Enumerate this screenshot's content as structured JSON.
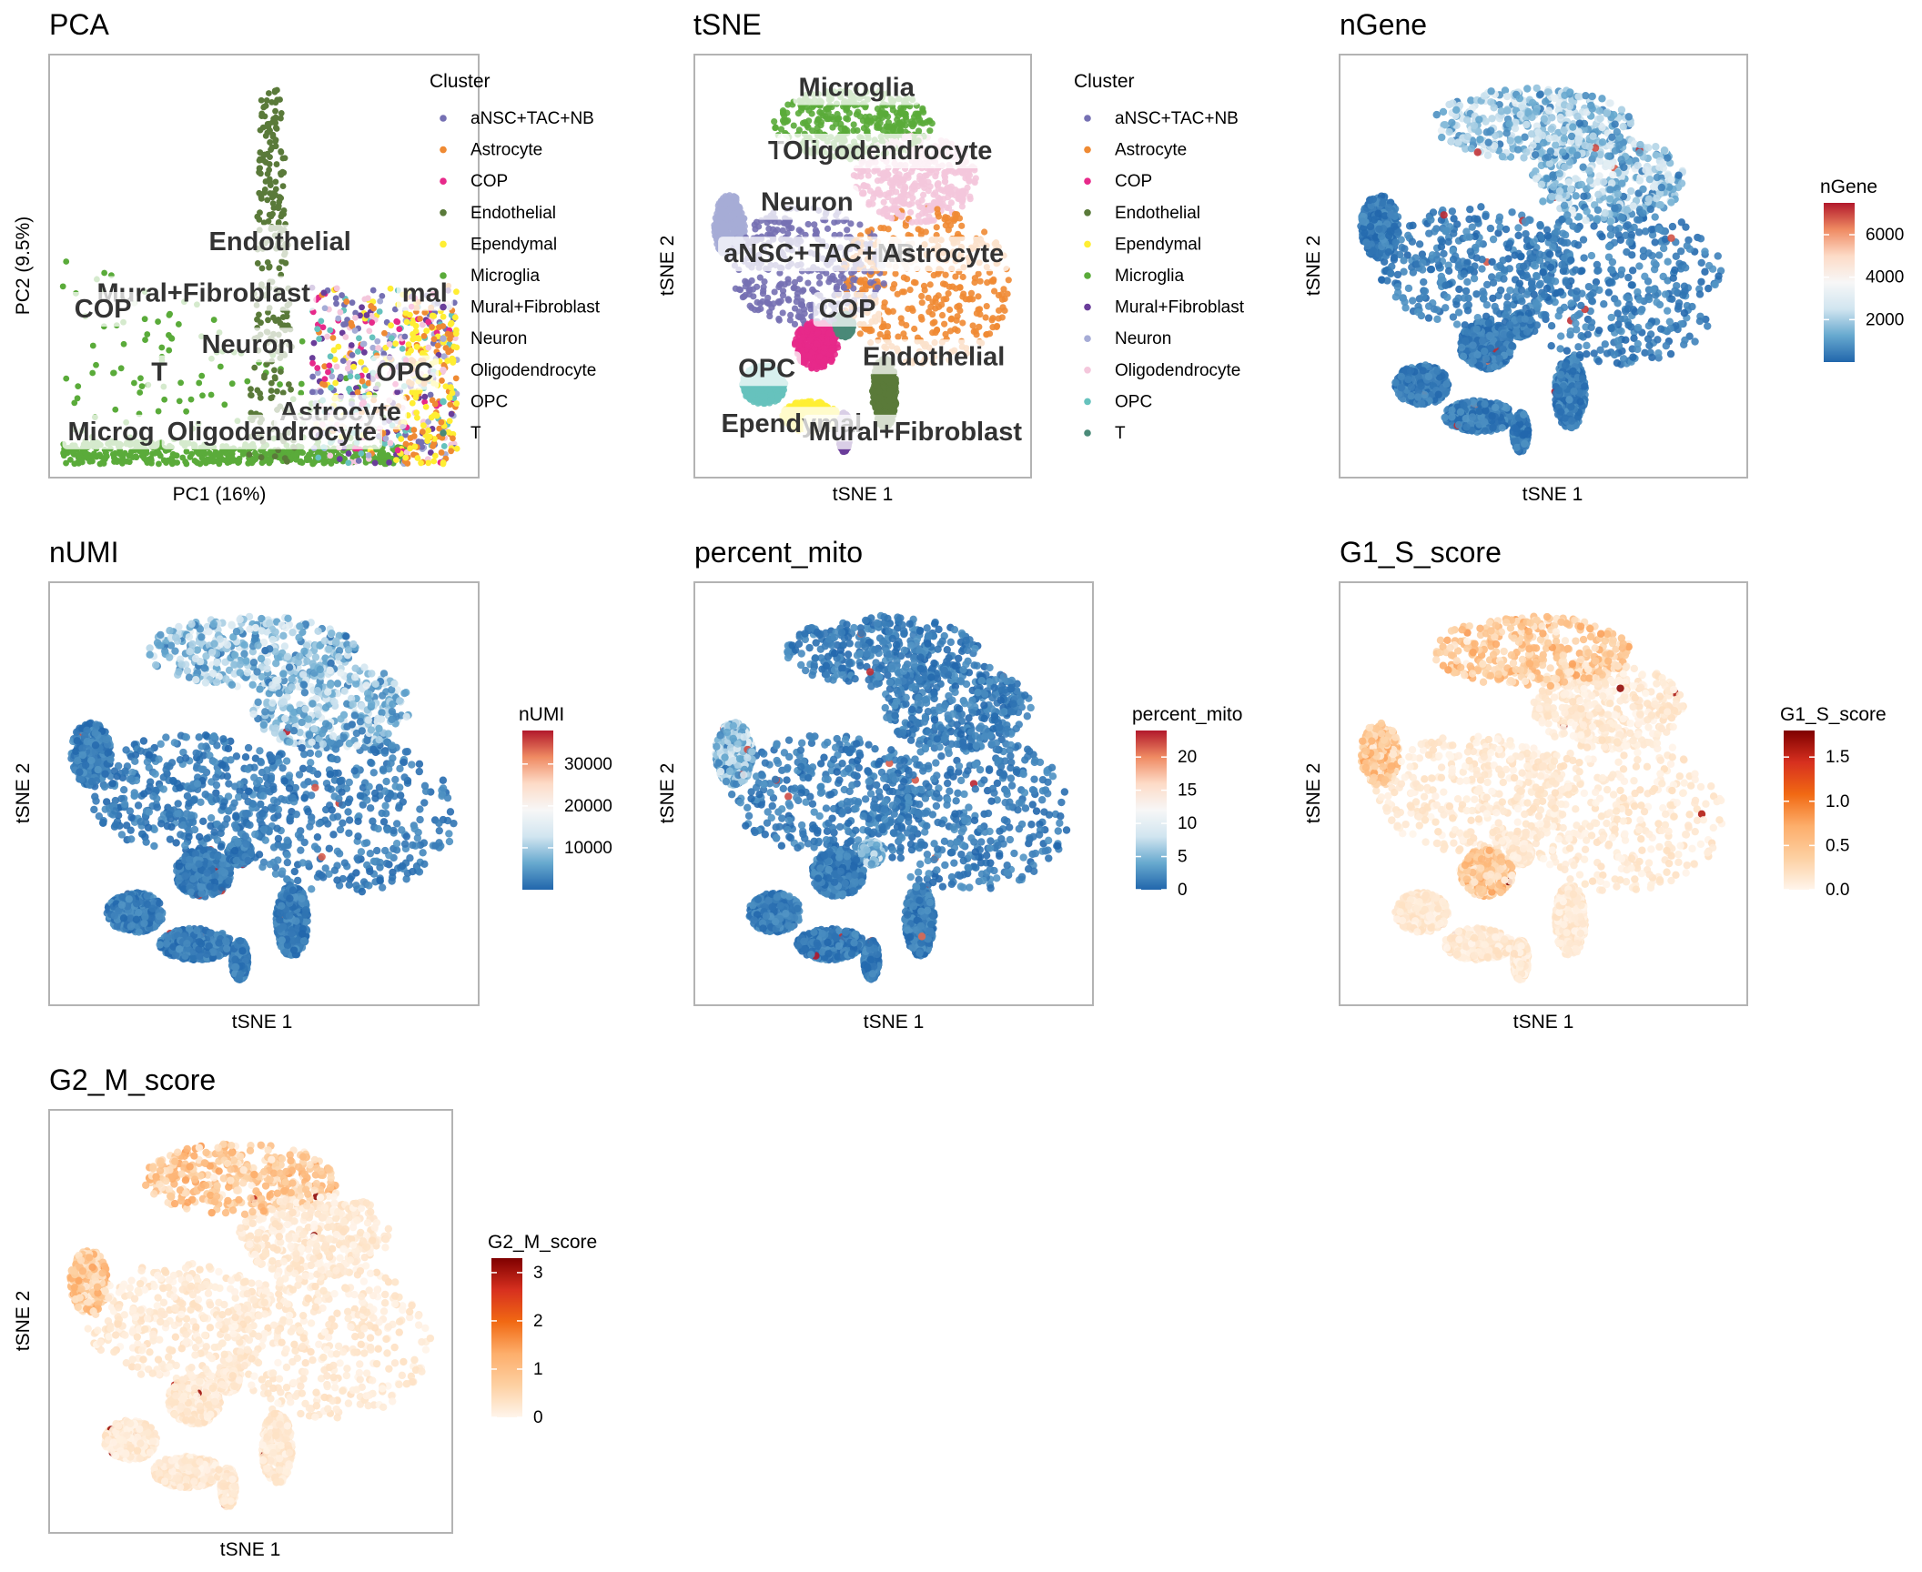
{
  "palette": {
    "clusters": [
      "#7570b3",
      "#ef8a33",
      "#e7298a",
      "#5a7a3a",
      "#ffee33",
      "#5aab3a",
      "#6a3d9a",
      "#a6acd6",
      "#f4c7dc",
      "#66c2bd",
      "#4a8a78"
    ],
    "divergent": [
      "#2166ac",
      "#67a9cf",
      "#d1e5f0",
      "#f7f7f7",
      "#fddbc7",
      "#ef8a62",
      "#b2182b"
    ],
    "sequential": [
      "#fff5eb",
      "#fdd0a2",
      "#fdae6b",
      "#f16913",
      "#d7301f",
      "#7f0000"
    ]
  },
  "chart_data": [
    {
      "id": "pca",
      "type": "scatter",
      "title": "PCA",
      "xlabel": "PC1 (16%)",
      "ylabel": "PC2 (9.5%)",
      "color_by": "cluster",
      "legend": {
        "title": "Cluster",
        "placement": "right",
        "entries": [
          "aNSC+TAC+NB",
          "Astrocyte",
          "COP",
          "Endothelial",
          "Ependymal",
          "Microglia",
          "Mural+Fibroblast",
          "Neuron",
          "Oligodendrocyte",
          "OPC",
          "T"
        ]
      },
      "labels": [
        {
          "text": "Endothelial",
          "x": 0.54,
          "y": 0.54
        },
        {
          "text": "Mural+Fibroblast",
          "x": 0.35,
          "y": 0.41
        },
        {
          "text": "mal",
          "x": 0.9,
          "y": 0.41
        },
        {
          "text": "COP",
          "x": 0.1,
          "y": 0.37
        },
        {
          "text": "Neuron",
          "x": 0.46,
          "y": 0.28
        },
        {
          "text": "OPC",
          "x": 0.85,
          "y": 0.21
        },
        {
          "text": "T",
          "x": 0.24,
          "y": 0.21
        },
        {
          "text": "Astrocyte",
          "x": 0.69,
          "y": 0.11
        },
        {
          "text": "Microg",
          "x": 0.12,
          "y": 0.06
        },
        {
          "text": "Oligodendrocyte",
          "x": 0.52,
          "y": 0.06
        }
      ]
    },
    {
      "id": "tsne",
      "type": "scatter",
      "title": "tSNE",
      "xlabel": "tSNE 1",
      "ylabel": "tSNE 2",
      "color_by": "cluster",
      "legend": {
        "title": "Cluster",
        "placement": "right",
        "entries": [
          "aNSC+TAC+NB",
          "Astrocyte",
          "COP",
          "Endothelial",
          "Ependymal",
          "Microglia",
          "Mural+Fibroblast",
          "Neuron",
          "Oligodendrocyte",
          "OPC",
          "T"
        ]
      },
      "labels": [
        {
          "text": "Microglia",
          "x": 0.48,
          "y": 0.93
        },
        {
          "text": "T",
          "x": 0.22,
          "y": 0.77
        },
        {
          "text": "Oligodendrocyte",
          "x": 0.58,
          "y": 0.77
        },
        {
          "text": "Neuron",
          "x": 0.32,
          "y": 0.64
        },
        {
          "text": "aNSC+TAC+NB",
          "x": 0.36,
          "y": 0.51
        },
        {
          "text": "Astrocyte",
          "x": 0.76,
          "y": 0.51
        },
        {
          "text": "COP",
          "x": 0.45,
          "y": 0.37
        },
        {
          "text": "OPC",
          "x": 0.19,
          "y": 0.22
        },
        {
          "text": "Endothelial",
          "x": 0.73,
          "y": 0.25
        },
        {
          "text": "Ependymal",
          "x": 0.27,
          "y": 0.08
        },
        {
          "text": "Mural+Fibroblast",
          "x": 0.67,
          "y": 0.06
        }
      ]
    },
    {
      "id": "ngene",
      "type": "scatter",
      "title": "nGene",
      "xlabel": "tSNE 1",
      "ylabel": "tSNE 2",
      "color_by": "value",
      "scale": "divergent",
      "legend": {
        "title": "nGene",
        "placement": "right",
        "range": [
          0,
          7500
        ],
        "ticks": [
          2000,
          4000,
          6000
        ]
      },
      "value_range": [
        0,
        7500
      ],
      "hotspot_regions": [
        0,
        1
      ]
    },
    {
      "id": "numi",
      "type": "scatter",
      "title": "nUMI",
      "xlabel": "tSNE 1",
      "ylabel": "tSNE 2",
      "color_by": "value",
      "scale": "divergent",
      "legend": {
        "title": "nUMI",
        "placement": "right",
        "range": [
          0,
          38000
        ],
        "ticks": [
          10000,
          20000,
          30000
        ]
      },
      "value_range": [
        0,
        38000
      ],
      "hotspot_regions": [
        0,
        1
      ]
    },
    {
      "id": "mito",
      "type": "scatter",
      "title": "percent_mito",
      "xlabel": "tSNE 1",
      "ylabel": "tSNE 2",
      "color_by": "value",
      "scale": "divergent",
      "legend": {
        "title": "percent_mito",
        "placement": "right",
        "range": [
          0,
          24
        ],
        "ticks": [
          0,
          5,
          10,
          15,
          20
        ]
      },
      "value_range": [
        0,
        24
      ],
      "hotspot_regions": [
        2,
        10
      ]
    },
    {
      "id": "g1s",
      "type": "scatter",
      "title": "G1_S_score",
      "xlabel": "tSNE 1",
      "ylabel": "tSNE 2",
      "color_by": "value",
      "scale": "sequential",
      "legend": {
        "title": "G1_S_score",
        "placement": "right",
        "range": [
          0,
          1.8
        ],
        "ticks": [
          0.0,
          0.5,
          1.0,
          1.5
        ]
      },
      "value_range": [
        0,
        1.8
      ],
      "hotspot_regions": [
        0,
        2,
        5
      ]
    },
    {
      "id": "g2m",
      "type": "scatter",
      "title": "G2_M_score",
      "xlabel": "tSNE 1",
      "ylabel": "tSNE 2",
      "color_by": "value",
      "scale": "sequential",
      "legend": {
        "title": "G2_M_score",
        "placement": "right",
        "range": [
          0,
          3.3
        ],
        "ticks": [
          0,
          1,
          2,
          3
        ]
      },
      "value_range": [
        0,
        3.3
      ],
      "hotspot_regions": [
        0,
        2
      ]
    }
  ]
}
